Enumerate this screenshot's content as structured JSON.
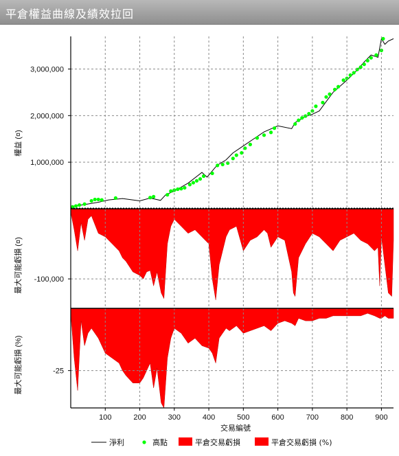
{
  "window": {
    "title": "平倉權益曲線及績效拉回"
  },
  "chart_data": [
    {
      "type": "line",
      "title": "",
      "ylabel": "權益 (¤)",
      "xlabel": "",
      "ylim": [
        0,
        3700000
      ],
      "xlim": [
        0,
        935
      ],
      "yticks": [
        1000000,
        2000000,
        3000000
      ],
      "ytick_labels": [
        "1,000,000",
        "2,000,000",
        "3,000,000"
      ],
      "grid": true,
      "series": [
        {
          "name": "淨利",
          "color": "#000000",
          "x": [
            0,
            40,
            80,
            110,
            150,
            200,
            230,
            260,
            275,
            300,
            340,
            380,
            395,
            420,
            430,
            450,
            470,
            500,
            530,
            560,
            600,
            640,
            650,
            680,
            700,
            720,
            740,
            760,
            800,
            830,
            850,
            870,
            890,
            900,
            910,
            920,
            935
          ],
          "y": [
            50000,
            90000,
            140000,
            190000,
            220000,
            170000,
            230000,
            180000,
            300000,
            380000,
            550000,
            780000,
            680000,
            900000,
            960000,
            1050000,
            1200000,
            1350000,
            1500000,
            1650000,
            1780000,
            1720000,
            1850000,
            1980000,
            2030000,
            2100000,
            2300000,
            2500000,
            2760000,
            2980000,
            3150000,
            3300000,
            3250000,
            3650000,
            3530000,
            3600000,
            3650000
          ]
        },
        {
          "name": "高點",
          "color": "#00ff00",
          "x": [
            5,
            15,
            25,
            40,
            60,
            70,
            80,
            90,
            130,
            230,
            240,
            280,
            290,
            300,
            310,
            320,
            330,
            345,
            355,
            365,
            375,
            385,
            410,
            425,
            440,
            455,
            470,
            480,
            495,
            505,
            520,
            540,
            560,
            580,
            590,
            650,
            660,
            670,
            680,
            690,
            700,
            710,
            730,
            740,
            750,
            765,
            775,
            790,
            800,
            810,
            820,
            830,
            840,
            850,
            860,
            870,
            885,
            900,
            905
          ],
          "y": [
            40000,
            60000,
            80000,
            100000,
            170000,
            200000,
            200000,
            190000,
            230000,
            240000,
            260000,
            300000,
            380000,
            400000,
            420000,
            430000,
            450000,
            520000,
            560000,
            600000,
            640000,
            700000,
            760000,
            930000,
            950000,
            980000,
            1080000,
            1150000,
            1200000,
            1300000,
            1380000,
            1520000,
            1580000,
            1640000,
            1730000,
            1820000,
            1900000,
            1950000,
            1990000,
            2040000,
            2100000,
            2200000,
            2280000,
            2400000,
            2460000,
            2560000,
            2620000,
            2760000,
            2800000,
            2870000,
            2920000,
            2990000,
            3040000,
            3100000,
            3180000,
            3240000,
            3300000,
            3400000,
            3650000
          ]
        }
      ]
    },
    {
      "type": "area",
      "ylabel": "最大可能虧損 (¤)",
      "ylim": [
        -142000,
        0
      ],
      "yticks": [
        -100000
      ],
      "ytick_labels": [
        "-100,000"
      ],
      "grid": true,
      "series": [
        {
          "name": "平倉交易虧損",
          "color": "#ff0000",
          "x": [
            0,
            10,
            20,
            30,
            40,
            50,
            60,
            80,
            100,
            120,
            140,
            150,
            160,
            180,
            200,
            210,
            220,
            230,
            240,
            250,
            262,
            270,
            280,
            290,
            300,
            320,
            340,
            360,
            380,
            400,
            410,
            420,
            430,
            440,
            450,
            460,
            480,
            500,
            520,
            540,
            560,
            570,
            580,
            600,
            620,
            640,
            645,
            650,
            660,
            680,
            700,
            720,
            740,
            760,
            780,
            800,
            820,
            840,
            860,
            880,
            890,
            895,
            900,
            910,
            920,
            930,
            935
          ],
          "y": [
            -5000,
            -30000,
            -60000,
            -20000,
            -45000,
            -15000,
            -10000,
            -35000,
            -40000,
            -50000,
            -60000,
            -70000,
            -75000,
            -90000,
            -95000,
            -100000,
            -90000,
            -88000,
            -110000,
            -90000,
            -120000,
            -128000,
            -50000,
            -25000,
            -15000,
            -25000,
            -35000,
            -30000,
            -40000,
            -50000,
            -100000,
            -130000,
            -80000,
            -60000,
            -40000,
            -30000,
            -25000,
            -60000,
            -45000,
            -40000,
            -30000,
            -35000,
            -55000,
            -40000,
            -45000,
            -90000,
            -120000,
            -125000,
            -70000,
            -50000,
            -35000,
            -40000,
            -50000,
            -60000,
            -45000,
            -40000,
            -35000,
            -45000,
            -50000,
            -60000,
            -55000,
            -110000,
            -40000,
            -80000,
            -120000,
            -125000,
            -45000
          ]
        }
      ]
    },
    {
      "type": "area",
      "ylabel": "最大可能虧損 (%)",
      "xlabel": "交易編號",
      "ylim": [
        -40,
        0
      ],
      "yticks": [
        -25
      ],
      "ytick_labels": [
        "-25"
      ],
      "xticks": [
        100,
        200,
        300,
        400,
        500,
        600,
        700,
        800,
        900
      ],
      "xtick_labels": [
        "100",
        "200",
        "300",
        "400",
        "500",
        "600",
        "700",
        "800",
        "900"
      ],
      "grid": true,
      "series": [
        {
          "name": "平倉交易虧損 (%)",
          "color": "#ff0000",
          "x": [
            0,
            10,
            20,
            30,
            40,
            50,
            60,
            80,
            100,
            120,
            140,
            150,
            160,
            180,
            200,
            210,
            220,
            230,
            240,
            250,
            262,
            270,
            280,
            290,
            300,
            320,
            340,
            360,
            380,
            400,
            410,
            420,
            430,
            440,
            450,
            460,
            480,
            500,
            520,
            540,
            560,
            580,
            600,
            620,
            640,
            650,
            660,
            680,
            700,
            720,
            740,
            760,
            780,
            800,
            820,
            840,
            860,
            880,
            895,
            900,
            910,
            920,
            935
          ],
          "y": [
            -2,
            -20,
            -33,
            -5,
            -15,
            -10,
            -8,
            -12,
            -18,
            -20,
            -22,
            -25,
            -27,
            -30,
            -30,
            -28,
            -25,
            -22,
            -32,
            -24,
            -38,
            -40,
            -20,
            -12,
            -8,
            -10,
            -14,
            -12,
            -15,
            -16,
            -18,
            -22,
            -12,
            -10,
            -8,
            -9,
            -7,
            -10,
            -9,
            -8,
            -7,
            -9,
            -6,
            -5,
            -6,
            -7,
            -4,
            -5,
            -5,
            -4,
            -4,
            -3,
            -3,
            -3,
            -3,
            -3,
            -2,
            -3,
            -4,
            -4,
            -3,
            -4,
            -4
          ]
        }
      ]
    }
  ],
  "legend": [
    {
      "label": "淨利",
      "symbol": "line",
      "color": "#000000"
    },
    {
      "label": "高點",
      "symbol": "dot",
      "color": "#00ff00"
    },
    {
      "label": "平倉交易虧損",
      "symbol": "box",
      "color": "#ff0000"
    },
    {
      "label": "平倉交易虧損 (%)",
      "symbol": "box",
      "color": "#ff0000"
    }
  ]
}
